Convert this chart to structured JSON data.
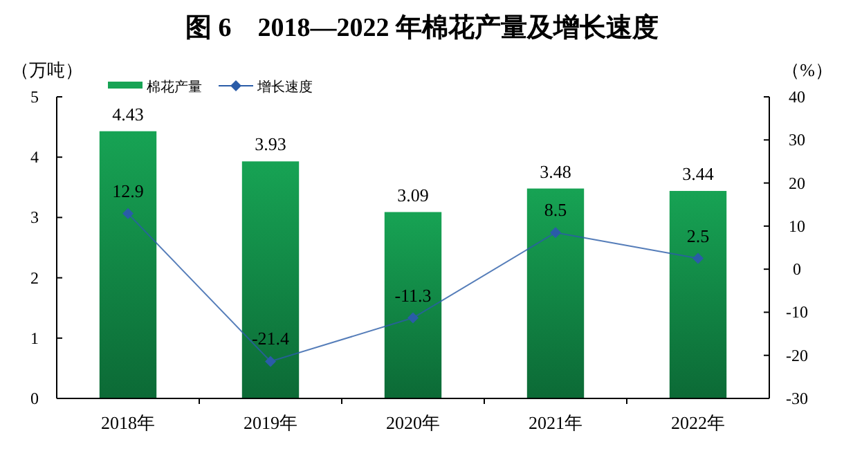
{
  "chart_data": {
    "type": "bar",
    "title": "图 6　2018—2022 年棉花产量及增长速度",
    "ylabel": "（万吨）",
    "y2label": "（%）",
    "categories": [
      "2018年",
      "2019年",
      "2020年",
      "2021年",
      "2022年"
    ],
    "series": [
      {
        "name": "棉花产量",
        "color": "#17a354",
        "values": [
          4.43,
          3.93,
          3.09,
          3.48,
          3.44
        ]
      },
      {
        "name": "增长速度",
        "type": "line",
        "axis": "y2",
        "color": "#2a5ca8",
        "marker": "diamond",
        "values": [
          12.9,
          -21.4,
          -11.3,
          8.5,
          2.5
        ]
      }
    ],
    "ylim": [
      0,
      5
    ],
    "yticks": [
      0,
      1,
      2,
      3,
      4,
      5
    ],
    "y2lim": [
      -30,
      40
    ],
    "y2ticks": [
      -30,
      -20,
      -10,
      0,
      10,
      20,
      30,
      40
    ],
    "data_labels": true,
    "legend": "top left",
    "grid": false
  }
}
